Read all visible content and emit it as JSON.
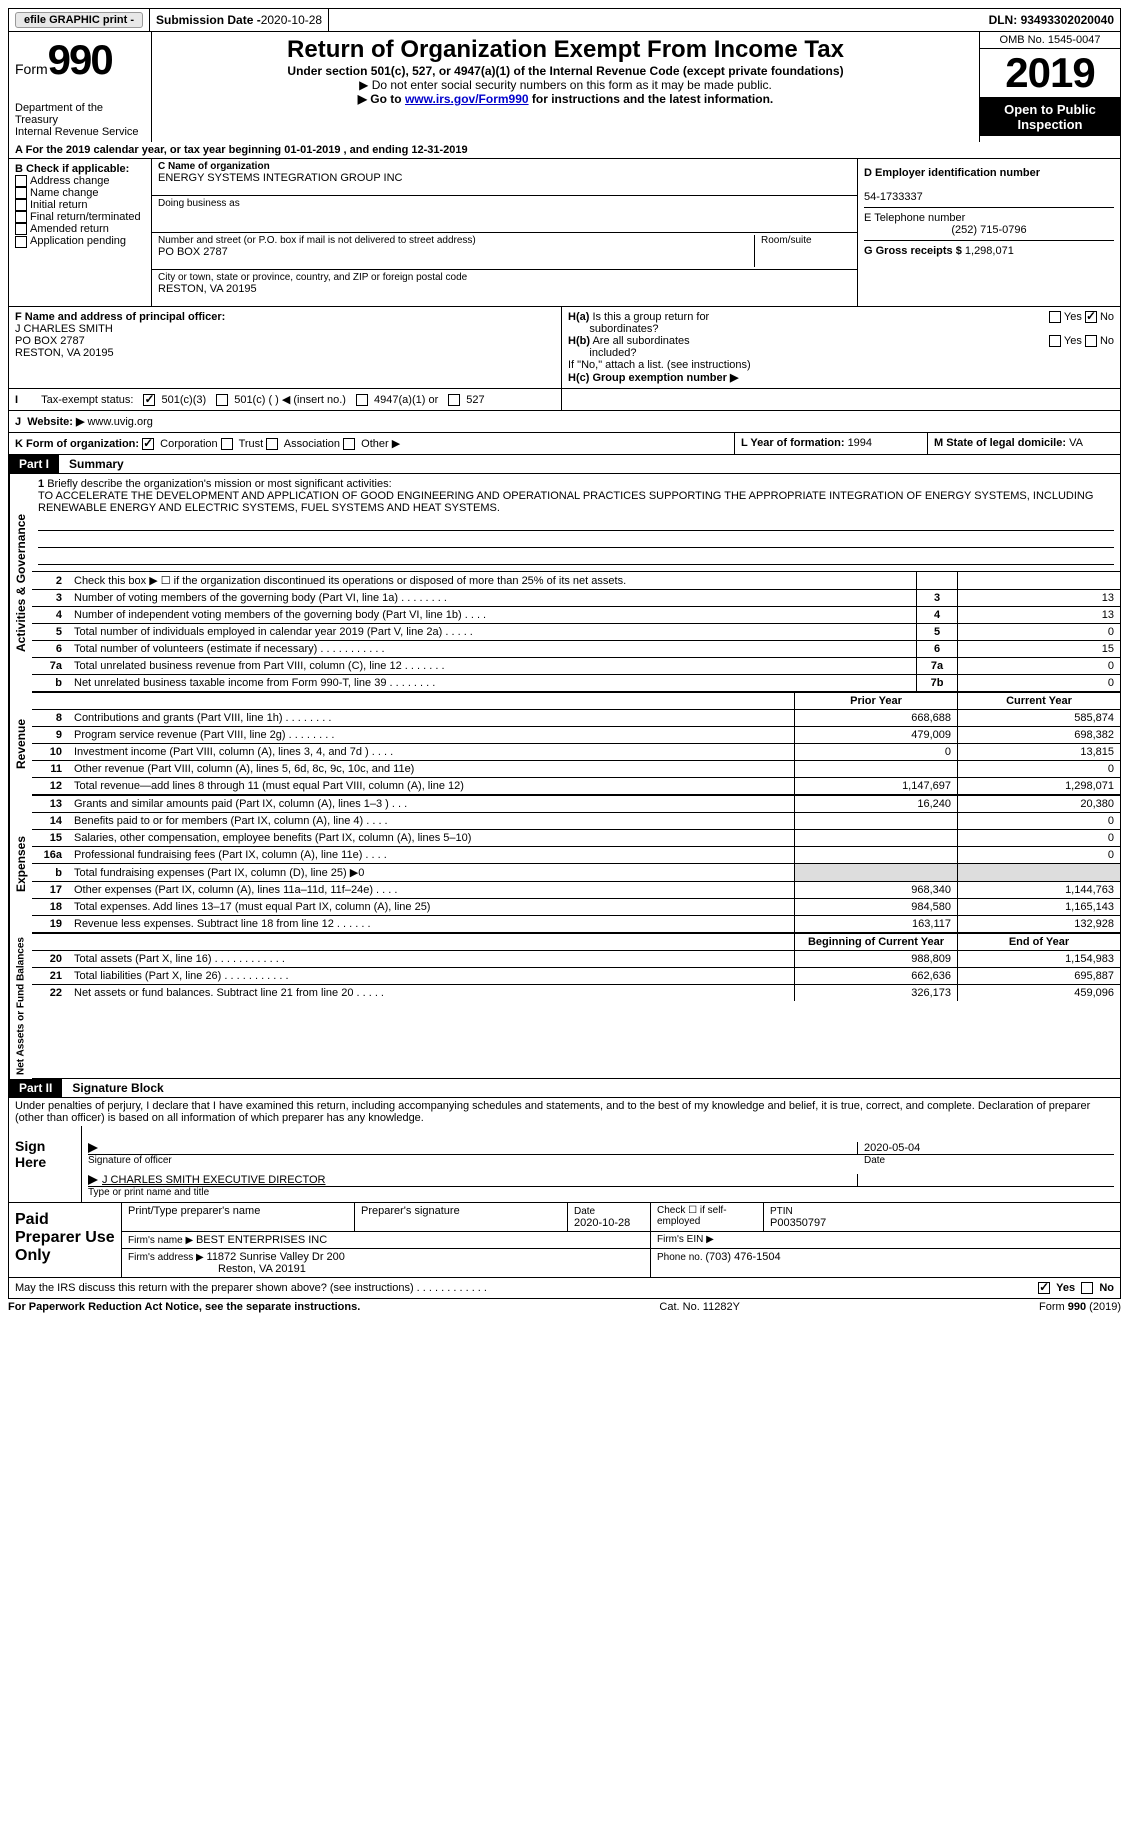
{
  "topbar": {
    "efile": "efile GRAPHIC print -",
    "submission_label": "Submission Date - ",
    "submission_date": "2020-10-28",
    "dln_label": "DLN: ",
    "dln": "93493302020040"
  },
  "header": {
    "form_word": "Form",
    "form_num": "990",
    "dept": "Department of the Treasury\nInternal Revenue Service",
    "title": "Return of Organization Exempt From Income Tax",
    "sub": "Under section 501(c), 527, or 4947(a)(1) of the Internal Revenue Code (except private foundations)",
    "note1": "▶ Do not enter social security numbers on this form as it may be made public.",
    "note2_pre": "▶ Go to ",
    "note2_link": "www.irs.gov/Form990",
    "note2_post": " for instructions and the latest information.",
    "omb": "OMB No. 1545-0047",
    "year": "2019",
    "open": "Open to Public Inspection"
  },
  "line_a": "For the 2019 calendar year, or tax year beginning 01-01-2019   , and ending 12-31-2019",
  "box_b": {
    "label": "B Check if applicable:",
    "items": [
      "Address change",
      "Name change",
      "Initial return",
      "Final return/terminated",
      "Amended return",
      "Application pending"
    ]
  },
  "box_c": {
    "name_lbl": "C Name of organization",
    "name": "ENERGY SYSTEMS INTEGRATION GROUP INC",
    "dba_lbl": "Doing business as",
    "dba": "",
    "street_lbl": "Number and street (or P.O. box if mail is not delivered to street address)",
    "room_lbl": "Room/suite",
    "street": "PO BOX 2787",
    "city_lbl": "City or town, state or province, country, and ZIP or foreign postal code",
    "city": "RESTON, VA  20195"
  },
  "box_d": {
    "ein_lbl": "D Employer identification number",
    "ein": "54-1733337",
    "phone_lbl": "E Telephone number",
    "phone": "(252) 715-0796",
    "gross_lbl": "G Gross receipts $ ",
    "gross": "1,298,071"
  },
  "box_f": {
    "lbl": "F  Name and address of principal officer:",
    "name": "J CHARLES SMITH",
    "line2": "PO BOX 2787",
    "line3": "RESTON, VA  20195"
  },
  "box_h": {
    "a_lbl": "H(a)  Is this a group return for subordinates?",
    "b_lbl": "H(b)  Are all subordinates included?",
    "b_note": "If \"No,\" attach a list. (see instructions)",
    "c_lbl": "H(c)  Group exemption number ▶",
    "yes": "Yes",
    "no": "No"
  },
  "box_i": {
    "lbl": "Tax-exempt status:",
    "o1": "501(c)(3)",
    "o2": "501(c) (  ) ◀ (insert no.)",
    "o3": "4947(a)(1) or",
    "o4": "527"
  },
  "box_j": {
    "lbl": "Website: ▶",
    "val": "www.uvig.org"
  },
  "box_k": {
    "lbl": "K Form of organization:",
    "o1": "Corporation",
    "o2": "Trust",
    "o3": "Association",
    "o4": "Other ▶"
  },
  "box_l": {
    "lbl": "L Year of formation: ",
    "val": "1994"
  },
  "box_m": {
    "lbl": "M State of legal domicile: ",
    "val": "VA"
  },
  "parts": {
    "p1_num": "Part I",
    "p1_title": "Summary",
    "p2_num": "Part II",
    "p2_title": "Signature Block"
  },
  "vtabs": {
    "ag": "Activities & Governance",
    "rev": "Revenue",
    "exp": "Expenses",
    "na": "Net Assets or Fund Balances"
  },
  "mission": {
    "num": "1",
    "lbl": "Briefly describe the organization's mission or most significant activities:",
    "text": "TO ACCELERATE THE DEVELOPMENT AND APPLICATION OF GOOD ENGINEERING AND OPERATIONAL PRACTICES SUPPORTING THE APPROPRIATE INTEGRATION OF ENERGY SYSTEMS, INCLUDING RENEWABLE ENERGY AND ELECTRIC SYSTEMS, FUEL SYSTEMS AND HEAT SYSTEMS."
  },
  "lines_ag": [
    {
      "n": "2",
      "d": "Check this box ▶ ☐  if the organization discontinued its operations or disposed of more than 25% of its net assets.",
      "box": "",
      "v": ""
    },
    {
      "n": "3",
      "d": "Number of voting members of the governing body (Part VI, line 1a)  .   .   .   .   .   .   .   .",
      "box": "3",
      "v": "13"
    },
    {
      "n": "4",
      "d": "Number of independent voting members of the governing body (Part VI, line 1b)  .   .   .   .",
      "box": "4",
      "v": "13"
    },
    {
      "n": "5",
      "d": "Total number of individuals employed in calendar year 2019 (Part V, line 2a)  .   .   .   .   .",
      "box": "5",
      "v": "0"
    },
    {
      "n": "6",
      "d": "Total number of volunteers (estimate if necessary)   .   .   .   .   .   .   .   .   .   .   .",
      "box": "6",
      "v": "15"
    },
    {
      "n": "7a",
      "d": "Total unrelated business revenue from Part VIII, column (C), line 12   .   .   .   .   .   .   .",
      "box": "7a",
      "v": "0"
    },
    {
      "n": "b",
      "d": "Net unrelated business taxable income from Form 990-T, line 39  .   .   .   .   .   .   .   .",
      "box": "7b",
      "v": "0"
    }
  ],
  "col_hdr": {
    "prior": "Prior Year",
    "current": "Current Year"
  },
  "lines_rev": [
    {
      "n": "8",
      "d": "Contributions and grants (Part VIII, line 1h)   .   .   .   .   .   .   .   .",
      "p": "668,688",
      "c": "585,874"
    },
    {
      "n": "9",
      "d": "Program service revenue (Part VIII, line 2g)   .   .   .   .   .   .   .   .",
      "p": "479,009",
      "c": "698,382"
    },
    {
      "n": "10",
      "d": "Investment income (Part VIII, column (A), lines 3, 4, and 7d )    .   .   .   .",
      "p": "0",
      "c": "13,815"
    },
    {
      "n": "11",
      "d": "Other revenue (Part VIII, column (A), lines 5, 6d, 8c, 9c, 10c, and 11e)",
      "p": "",
      "c": "0"
    },
    {
      "n": "12",
      "d": "Total revenue—add lines 8 through 11 (must equal Part VIII, column (A), line 12)",
      "p": "1,147,697",
      "c": "1,298,071"
    }
  ],
  "lines_exp": [
    {
      "n": "13",
      "d": "Grants and similar amounts paid (Part IX, column (A), lines 1–3 )  .   .   .",
      "p": "16,240",
      "c": "20,380"
    },
    {
      "n": "14",
      "d": "Benefits paid to or for members (Part IX, column (A), line 4)  .   .   .   .",
      "p": "",
      "c": "0"
    },
    {
      "n": "15",
      "d": "Salaries, other compensation, employee benefits (Part IX, column (A), lines 5–10)",
      "p": "",
      "c": "0"
    },
    {
      "n": "16a",
      "d": "Professional fundraising fees (Part IX, column (A), line 11e)   .   .   .   .",
      "p": "",
      "c": "0"
    },
    {
      "n": "b",
      "d": "Total fundraising expenses (Part IX, column (D), line 25) ▶0",
      "p": "",
      "c": "",
      "shade": true
    },
    {
      "n": "17",
      "d": "Other expenses (Part IX, column (A), lines 11a–11d, 11f–24e)   .   .   .   .",
      "p": "968,340",
      "c": "1,144,763"
    },
    {
      "n": "18",
      "d": "Total expenses. Add lines 13–17 (must equal Part IX, column (A), line 25)",
      "p": "984,580",
      "c": "1,165,143"
    },
    {
      "n": "19",
      "d": "Revenue less expenses. Subtract line 18 from line 12   .   .   .   .   .   .",
      "p": "163,117",
      "c": "132,928"
    }
  ],
  "col_hdr2": {
    "prior": "Beginning of Current Year",
    "current": "End of Year"
  },
  "lines_na": [
    {
      "n": "20",
      "d": "Total assets (Part X, line 16)   .   .   .   .   .   .   .   .   .   .   .   .",
      "p": "988,809",
      "c": "1,154,983"
    },
    {
      "n": "21",
      "d": "Total liabilities (Part X, line 26)  .   .   .   .   .   .   .   .   .   .   .",
      "p": "662,636",
      "c": "695,887"
    },
    {
      "n": "22",
      "d": "Net assets or fund balances. Subtract line 21 from line 20  .   .   .   .   .",
      "p": "326,173",
      "c": "459,096"
    }
  ],
  "penalty": "Under penalties of perjury, I declare that I have examined this return, including accompanying schedules and statements, and to the best of my knowledge and belief, it is true, correct, and complete. Declaration of preparer (other than officer) is based on all information of which preparer has any knowledge.",
  "sign": {
    "lbl": "Sign Here",
    "sig_lbl": "Signature of officer",
    "date_lbl": "Date",
    "date": "2020-05-04",
    "name": "J CHARLES SMITH  EXECUTIVE DIRECTOR",
    "name_lbl": "Type or print name and title"
  },
  "prep": {
    "lbl": "Paid Preparer Use Only",
    "c1": "Print/Type preparer's name",
    "c2": "Preparer's signature",
    "c3_lbl": "Date",
    "c3": "2020-10-28",
    "c4": "Check ☐ if self-employed",
    "c5_lbl": "PTIN",
    "c5": "P00350797",
    "firm_lbl": "Firm's name    ▶ ",
    "firm": "BEST ENTERPRISES INC",
    "ein_lbl": "Firm's EIN ▶",
    "addr_lbl": "Firm's address ▶ ",
    "addr1": "11872 Sunrise Valley Dr 200",
    "addr2": "Reston, VA  20191",
    "phone_lbl": "Phone no. ",
    "phone": "(703) 476-1504"
  },
  "discuss": {
    "q": "May the IRS discuss this return with the preparer shown above? (see instructions)   .   .   .   .   .   .   .   .   .   .   .   .",
    "yes": "Yes",
    "no": "No"
  },
  "footer": {
    "l": "For Paperwork Reduction Act Notice, see the separate instructions.",
    "m": "Cat. No. 11282Y",
    "r": "Form 990 (2019)"
  }
}
